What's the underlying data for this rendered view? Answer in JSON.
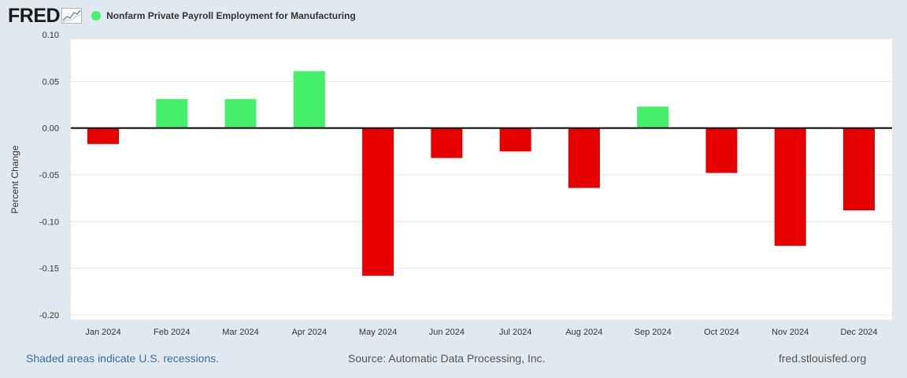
{
  "header": {
    "logo_text": "FRED",
    "logo_icon": "line-chart-icon",
    "series_title": "Nonfarm Private Payroll Employment for Manufacturing",
    "series_color": "#44ef6a"
  },
  "colors": {
    "positive": "#44ef6a",
    "negative": "#e60000",
    "zero_line": "#000000",
    "grid": "#e6e6e6",
    "plot_bg": "#ffffff"
  },
  "chart_data": {
    "type": "bar",
    "title": "Nonfarm Private Payroll Employment for Manufacturing",
    "xlabel": "",
    "ylabel": "Percent Change",
    "ylim": [
      -0.2,
      0.1
    ],
    "yticks": [
      0.1,
      0.05,
      0.0,
      -0.05,
      -0.1,
      -0.15,
      -0.2
    ],
    "ytick_labels": [
      "0.10",
      "0.05",
      "0.00",
      "-0.05",
      "-0.10",
      "-0.15",
      "-0.20"
    ],
    "categories": [
      "Jan 2024",
      "Feb 2024",
      "Mar 2024",
      "Apr 2024",
      "May 2024",
      "Jun 2024",
      "Jul 2024",
      "Aug 2024",
      "Sep 2024",
      "Oct 2024",
      "Nov 2024",
      "Dec 2024"
    ],
    "values": [
      -0.017,
      0.031,
      0.031,
      0.061,
      -0.158,
      -0.032,
      -0.025,
      -0.064,
      0.023,
      -0.048,
      -0.126,
      -0.088
    ],
    "grid": true
  },
  "footer": {
    "recession_note": "Shaded areas indicate U.S. recessions.",
    "source": "Source: Automatic Data Processing, Inc.",
    "site": "fred.stlouisfed.org"
  }
}
